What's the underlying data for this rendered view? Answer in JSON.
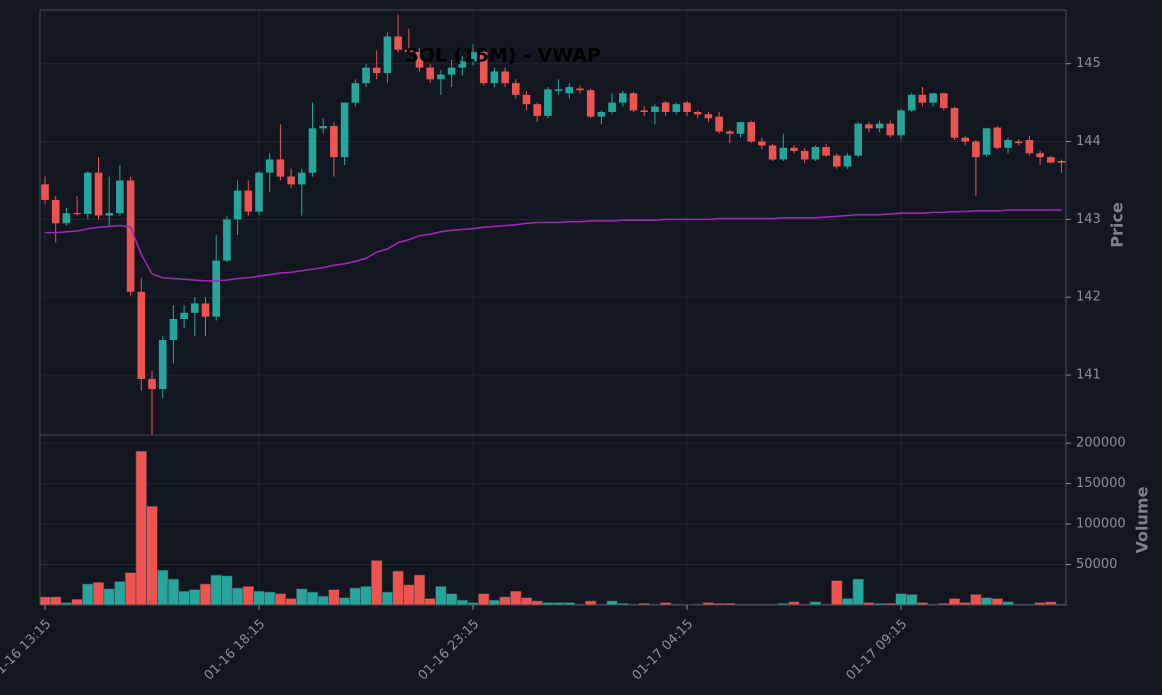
{
  "chart_data": [
    {
      "type": "candlestick",
      "title": "SOL (15M) - VWAP",
      "y_label": "Price",
      "up_color": "#26a69a",
      "down_color": "#ef5350",
      "open": [
        143.45,
        143.25,
        142.95,
        143.08,
        143.07,
        143.6,
        143.05,
        143.08,
        143.5,
        142.07,
        140.95,
        140.82,
        141.45,
        141.72,
        141.8,
        141.92,
        141.75,
        142.47,
        143.0,
        143.37,
        143.1,
        143.6,
        143.77,
        143.55,
        143.45,
        143.6,
        144.17,
        144.2,
        143.8,
        144.5,
        144.75,
        144.95,
        144.88,
        145.35,
        145.18,
        145.15,
        144.95,
        144.8,
        144.86,
        144.95,
        145.03,
        145.15,
        144.75,
        144.9,
        144.75,
        144.6,
        144.48,
        144.33,
        144.65,
        144.62,
        144.68,
        144.66,
        144.32,
        144.38,
        144.5,
        144.62,
        144.4,
        144.38,
        144.5,
        144.38,
        144.5,
        144.38,
        144.35,
        144.32,
        144.13,
        144.1,
        144.25,
        144.0,
        143.95,
        143.77,
        143.92,
        143.88,
        143.77,
        143.93,
        143.82,
        143.68,
        143.82,
        144.22,
        144.17,
        144.23,
        144.08,
        144.4,
        144.6,
        144.5,
        144.62,
        144.43,
        144.05,
        144.0,
        143.83,
        144.18,
        143.92,
        144.0,
        144.02,
        143.85,
        143.8,
        143.75
      ],
      "high": [
        143.55,
        143.3,
        143.15,
        143.3,
        143.62,
        143.8,
        143.55,
        143.7,
        143.55,
        142.25,
        141.05,
        141.5,
        141.9,
        141.9,
        142.0,
        142.0,
        142.8,
        143.05,
        143.5,
        143.5,
        143.62,
        143.85,
        144.22,
        143.65,
        143.65,
        144.5,
        144.3,
        144.25,
        144.5,
        144.8,
        145.0,
        145.17,
        145.4,
        145.63,
        145.45,
        145.2,
        145.0,
        144.92,
        145.05,
        145.1,
        145.25,
        145.2,
        144.95,
        144.95,
        144.8,
        144.65,
        144.5,
        144.7,
        144.8,
        144.75,
        144.72,
        144.68,
        144.4,
        144.62,
        144.65,
        144.64,
        144.45,
        144.48,
        144.52,
        144.5,
        144.52,
        144.4,
        144.38,
        144.38,
        144.15,
        144.25,
        144.27,
        144.05,
        143.97,
        144.1,
        143.95,
        143.92,
        143.95,
        143.97,
        143.85,
        143.85,
        144.25,
        144.25,
        144.27,
        144.27,
        144.42,
        144.62,
        144.7,
        144.62,
        144.63,
        144.45,
        144.07,
        144.02,
        144.18,
        144.2,
        144.05,
        144.03,
        144.07,
        143.88,
        143.82,
        143.77
      ],
      "low": [
        143.2,
        142.7,
        142.92,
        143.05,
        143.0,
        143.0,
        142.9,
        143.05,
        142.02,
        140.8,
        140.23,
        140.7,
        141.15,
        141.6,
        141.5,
        141.5,
        141.7,
        142.45,
        142.8,
        143.05,
        143.05,
        143.35,
        143.5,
        143.4,
        143.05,
        143.55,
        144.1,
        143.55,
        143.7,
        144.45,
        144.7,
        144.8,
        144.75,
        145.15,
        145.1,
        144.9,
        144.75,
        144.6,
        144.7,
        144.85,
        144.98,
        144.72,
        144.7,
        144.7,
        144.55,
        144.4,
        144.25,
        144.3,
        144.6,
        144.55,
        144.62,
        144.3,
        144.22,
        144.35,
        144.45,
        144.38,
        144.33,
        144.22,
        144.33,
        144.35,
        144.33,
        144.3,
        144.25,
        144.1,
        143.98,
        144.05,
        143.98,
        143.9,
        143.75,
        143.75,
        143.85,
        143.72,
        143.75,
        143.8,
        143.65,
        143.65,
        143.8,
        144.12,
        144.12,
        144.05,
        144.03,
        144.38,
        144.45,
        144.45,
        144.4,
        144.02,
        143.95,
        143.3,
        143.8,
        143.9,
        143.85,
        143.95,
        143.82,
        143.7,
        143.72,
        143.6
      ],
      "close": [
        143.25,
        142.95,
        143.08,
        143.07,
        143.6,
        143.05,
        143.08,
        143.5,
        142.07,
        140.95,
        140.82,
        141.45,
        141.72,
        141.8,
        141.92,
        141.75,
        142.47,
        143.0,
        143.37,
        143.1,
        143.6,
        143.77,
        143.55,
        143.45,
        143.6,
        144.17,
        144.2,
        143.8,
        144.5,
        144.75,
        144.95,
        144.88,
        145.35,
        145.18,
        145.15,
        144.95,
        144.8,
        144.86,
        144.95,
        145.03,
        145.15,
        144.75,
        144.9,
        144.75,
        144.6,
        144.48,
        144.33,
        144.67,
        144.67,
        144.7,
        144.66,
        144.32,
        144.38,
        144.5,
        144.62,
        144.4,
        144.38,
        144.45,
        144.38,
        144.48,
        144.38,
        144.35,
        144.3,
        144.13,
        144.1,
        144.25,
        144.0,
        143.95,
        143.77,
        143.92,
        143.88,
        143.77,
        143.93,
        143.82,
        143.68,
        143.82,
        144.23,
        144.17,
        144.23,
        144.08,
        144.4,
        144.6,
        144.5,
        144.62,
        144.43,
        144.05,
        144.0,
        143.8,
        144.17,
        143.92,
        144.02,
        143.98,
        143.85,
        143.8,
        143.73,
        143.73
      ],
      "vwap": {
        "color": "#9c27b0",
        "values": [
          142.83,
          142.83,
          142.84,
          142.85,
          142.88,
          142.9,
          142.91,
          142.92,
          142.9,
          142.55,
          142.3,
          142.25,
          142.24,
          142.23,
          142.22,
          142.21,
          142.21,
          142.22,
          142.24,
          142.25,
          142.27,
          142.29,
          142.31,
          142.32,
          142.34,
          142.36,
          142.38,
          142.41,
          142.43,
          142.46,
          142.5,
          142.58,
          142.62,
          142.7,
          142.74,
          142.79,
          142.81,
          142.84,
          142.86,
          142.87,
          142.88,
          142.9,
          142.91,
          142.92,
          142.93,
          142.95,
          142.96,
          142.96,
          142.96,
          142.97,
          142.97,
          142.98,
          142.98,
          142.98,
          142.99,
          142.99,
          142.99,
          142.99,
          143.0,
          143.0,
          143.0,
          143.0,
          143.0,
          143.01,
          143.01,
          143.01,
          143.01,
          143.01,
          143.01,
          143.02,
          143.02,
          143.02,
          143.02,
          143.03,
          143.04,
          143.05,
          143.06,
          143.06,
          143.06,
          143.07,
          143.08,
          143.08,
          143.08,
          143.09,
          143.09,
          143.1,
          143.1,
          143.11,
          143.11,
          143.11,
          143.12,
          143.12,
          143.12,
          143.12,
          143.12,
          143.12
        ]
      },
      "ylim": [
        140.23,
        145.69
      ],
      "yticks": [
        141,
        142,
        143,
        144,
        145
      ],
      "grid": true
    },
    {
      "type": "bar",
      "y_label": "Volume",
      "x": [
        "01-16 13:15",
        "01-16 13:30",
        "01-16 13:45",
        "01-16 14:00",
        "01-16 14:15",
        "01-16 14:30",
        "01-16 14:45",
        "01-16 15:00",
        "01-16 15:15",
        "01-16 15:30",
        "01-16 15:45",
        "01-16 16:00",
        "01-16 16:15",
        "01-16 16:30",
        "01-16 16:45",
        "01-16 17:00",
        "01-16 17:15",
        "01-16 17:30",
        "01-16 17:45",
        "01-16 18:00",
        "01-16 18:15",
        "01-16 18:30",
        "01-16 18:45",
        "01-16 19:00",
        "01-16 19:15",
        "01-16 19:30",
        "01-16 19:45",
        "01-16 20:00",
        "01-16 20:15",
        "01-16 20:30",
        "01-16 20:45",
        "01-16 21:00",
        "01-16 21:15",
        "01-16 21:30",
        "01-16 21:45",
        "01-16 22:00",
        "01-16 22:15",
        "01-16 22:30",
        "01-16 22:45",
        "01-16 23:00",
        "01-16 23:15",
        "01-16 23:30",
        "01-16 23:45",
        "01-17 00:00",
        "01-17 00:15",
        "01-17 00:30",
        "01-17 00:45",
        "01-17 01:00",
        "01-17 01:15",
        "01-17 01:30",
        "01-17 01:45",
        "01-17 02:00",
        "01-17 02:15",
        "01-17 02:30",
        "01-17 02:45",
        "01-17 03:00",
        "01-17 03:15",
        "01-17 03:30",
        "01-17 03:45",
        "01-17 04:00",
        "01-17 04:15",
        "01-17 04:30",
        "01-17 04:45",
        "01-17 05:00",
        "01-17 05:15",
        "01-17 05:30",
        "01-17 05:45",
        "01-17 06:00",
        "01-17 06:15",
        "01-17 06:30",
        "01-17 06:45",
        "01-17 07:00",
        "01-17 07:15",
        "01-17 07:30",
        "01-17 07:45",
        "01-17 08:00",
        "01-17 08:15",
        "01-17 08:30",
        "01-17 08:45",
        "01-17 09:00",
        "01-17 09:15",
        "01-17 09:30",
        "01-17 09:45",
        "01-17 10:00",
        "01-17 10:15",
        "01-17 10:30",
        "01-17 10:45",
        "01-17 11:00",
        "01-17 11:15",
        "01-17 11:30",
        "01-17 11:45",
        "01-17 12:00",
        "01-17 12:15",
        "01-17 12:30",
        "01-17 12:45",
        "01-17 13:00"
      ],
      "values": [
        10000,
        10000,
        3000,
        7000,
        26000,
        28000,
        20000,
        29000,
        40000,
        190000,
        122000,
        43000,
        32000,
        17000,
        19000,
        26000,
        37000,
        36000,
        21000,
        23000,
        17000,
        16000,
        14000,
        8000,
        20000,
        16000,
        11000,
        19000,
        9000,
        21000,
        23000,
        55000,
        16000,
        42000,
        25000,
        37000,
        8000,
        23000,
        14000,
        6000,
        3000,
        14000,
        6000,
        10000,
        17000,
        9000,
        5000,
        3000,
        3000,
        3000,
        1000,
        5000,
        1000,
        5000,
        2000,
        1000,
        2000,
        1000,
        3000,
        1000,
        500,
        1000,
        3000,
        2000,
        2000,
        1000,
        1000,
        1000,
        1000,
        2000,
        4000,
        1000,
        4000,
        1000,
        30000,
        8000,
        32000,
        3000,
        2000,
        2000,
        14000,
        13000,
        3000,
        1000,
        2000,
        8000,
        3000,
        13000,
        9000,
        8000,
        4000,
        1000,
        1000,
        3000,
        4000,
        1000
      ],
      "ylim": [
        0,
        210000
      ],
      "yticks": [
        50000,
        100000,
        150000,
        200000
      ],
      "xticks": [
        "01-16 13:15",
        "01-16 18:15",
        "01-16 23:15",
        "01-17 04:15",
        "01-17 09:15"
      ],
      "grid": true
    }
  ]
}
